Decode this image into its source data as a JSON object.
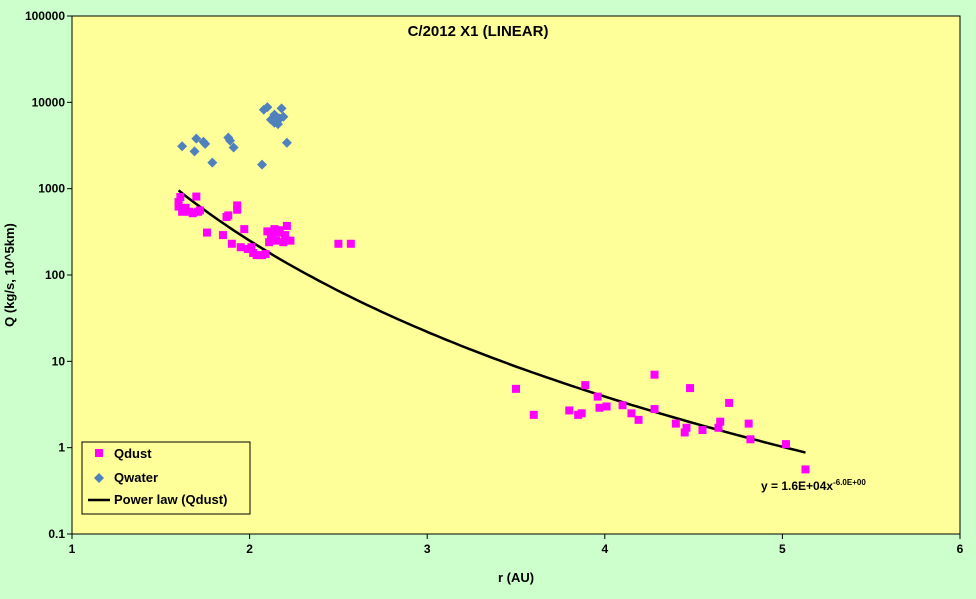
{
  "chart_data": {
    "type": "scatter",
    "title": "C/2012 X1 (LINEAR)",
    "xlabel": "r (AU)",
    "ylabel": "Q (kg/s, 10^5km)",
    "xlim": [
      1,
      6
    ],
    "ylim": [
      0.1,
      100000
    ],
    "yscale": "log",
    "x_ticks": [
      "1",
      "2",
      "3",
      "4",
      "5",
      "6"
    ],
    "y_ticks": [
      "0.1",
      "1",
      "10",
      "100",
      "1000",
      "10000",
      "100000"
    ],
    "grid": false,
    "legend_position": "bottom-left",
    "background_color": "#ffff99",
    "outer_background_color": "#ccffcc",
    "series": [
      {
        "name": "Qdust",
        "marker": "square",
        "color": "#ff00ff",
        "points": [
          [
            1.6,
            700
          ],
          [
            1.6,
            620
          ],
          [
            1.61,
            800
          ],
          [
            1.62,
            540
          ],
          [
            1.64,
            600
          ],
          [
            1.66,
            540
          ],
          [
            1.68,
            520
          ],
          [
            1.7,
            810
          ],
          [
            1.71,
            540
          ],
          [
            1.72,
            560
          ],
          [
            1.76,
            310
          ],
          [
            1.85,
            290
          ],
          [
            1.87,
            470
          ],
          [
            1.88,
            490
          ],
          [
            1.9,
            230
          ],
          [
            1.93,
            640
          ],
          [
            1.93,
            570
          ],
          [
            1.95,
            210
          ],
          [
            1.97,
            340
          ],
          [
            1.99,
            200
          ],
          [
            2.01,
            210
          ],
          [
            2.02,
            180
          ],
          [
            2.04,
            170
          ],
          [
            2.07,
            170
          ],
          [
            2.09,
            175
          ],
          [
            2.1,
            320
          ],
          [
            2.11,
            240
          ],
          [
            2.12,
            280
          ],
          [
            2.14,
            340
          ],
          [
            2.15,
            250
          ],
          [
            2.16,
            310
          ],
          [
            2.17,
            330
          ],
          [
            2.19,
            240
          ],
          [
            2.2,
            290
          ],
          [
            2.21,
            370
          ],
          [
            2.23,
            250
          ],
          [
            2.5,
            230
          ],
          [
            2.57,
            230
          ],
          [
            3.5,
            4.8
          ],
          [
            3.6,
            2.4
          ],
          [
            3.8,
            2.7
          ],
          [
            3.85,
            2.4
          ],
          [
            3.87,
            2.5
          ],
          [
            3.89,
            5.3
          ],
          [
            3.96,
            3.9
          ],
          [
            3.97,
            2.9
          ],
          [
            4.01,
            3.0
          ],
          [
            4.1,
            3.1
          ],
          [
            4.15,
            2.5
          ],
          [
            4.19,
            2.1
          ],
          [
            4.28,
            7.0
          ],
          [
            4.28,
            2.8
          ],
          [
            4.4,
            1.9
          ],
          [
            4.45,
            1.5
          ],
          [
            4.46,
            1.7
          ],
          [
            4.48,
            4.9
          ],
          [
            4.55,
            1.6
          ],
          [
            4.64,
            1.7
          ],
          [
            4.65,
            2.0
          ],
          [
            4.7,
            3.3
          ],
          [
            4.81,
            1.9
          ],
          [
            4.82,
            1.25
          ],
          [
            5.02,
            1.1
          ],
          [
            5.13,
            0.56
          ]
        ]
      },
      {
        "name": "Qwater",
        "marker": "diamond",
        "color": "#4f81bd",
        "points": [
          [
            1.62,
            3100
          ],
          [
            1.69,
            2700
          ],
          [
            1.7,
            3800
          ],
          [
            1.74,
            3500
          ],
          [
            1.75,
            3300
          ],
          [
            1.79,
            2000
          ],
          [
            1.88,
            3900
          ],
          [
            1.89,
            3600
          ],
          [
            1.91,
            3000
          ],
          [
            2.07,
            1900
          ],
          [
            2.08,
            8200
          ],
          [
            2.1,
            8800
          ],
          [
            2.12,
            6300
          ],
          [
            2.14,
            7200
          ],
          [
            2.14,
            5800
          ],
          [
            2.16,
            5600
          ],
          [
            2.17,
            6500
          ],
          [
            2.18,
            8500
          ],
          [
            2.19,
            6800
          ],
          [
            2.21,
            3400
          ],
          [
            2.15,
            6000
          ]
        ]
      }
    ],
    "fit": {
      "name": "Power law (Qdust)",
      "color": "#000000",
      "coefficient": 16000,
      "exponent": -6.0,
      "x_range": [
        1.6,
        5.13
      ],
      "equation_main": "y = 1.6E+04x",
      "equation_exponent": "-6.0E+00"
    }
  }
}
